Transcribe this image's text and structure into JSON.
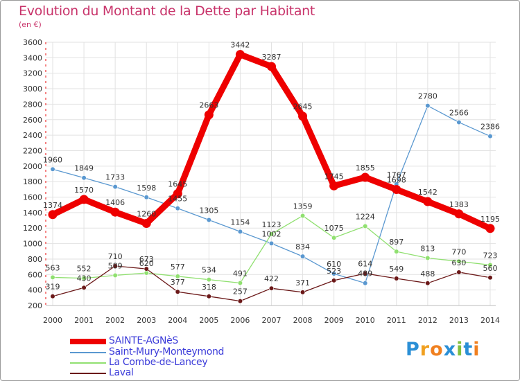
{
  "title": "Evolution du Montant de la Dette par Habitant",
  "subtitle": "(en €)",
  "logo_text": "Proxiti",
  "chart_data": {
    "type": "line",
    "title": "Evolution du Montant de la Dette par Habitant",
    "ylabel": "(en €)",
    "x": [
      2000,
      2001,
      2002,
      2003,
      2004,
      2005,
      2006,
      2007,
      2008,
      2009,
      2010,
      2011,
      2012,
      2013,
      2014
    ],
    "ylim": [
      200,
      3600
    ],
    "yticks": [
      200,
      400,
      600,
      800,
      1000,
      1200,
      1400,
      1600,
      1800,
      2000,
      2200,
      2400,
      2600,
      2800,
      3000,
      3200,
      3400,
      3600
    ],
    "grid": true,
    "legend": "bottom-left",
    "series": [
      {
        "name": "SAINTE-AGNèS",
        "color": "#ee0000",
        "values": [
          1374,
          1570,
          1406,
          1260,
          1645,
          2663,
          3442,
          3287,
          2645,
          1745,
          1855,
          1698,
          1542,
          1383,
          1195
        ],
        "labels": [
          "1374",
          "1570",
          "1406",
          "1260",
          "1645",
          "2663",
          "3442",
          "3287",
          "2645",
          "1745",
          "1855",
          "1698",
          "1542",
          "1383",
          "1195"
        ]
      },
      {
        "name": "Saint-Mury-Monteymond",
        "color": "#5a98d0",
        "values": [
          1960,
          1849,
          1733,
          1598,
          1455,
          1305,
          1154,
          1002,
          834,
          610,
          489,
          1767,
          2780,
          2566,
          2386
        ],
        "labels": [
          "1960",
          "1849",
          "1733",
          "1598",
          "1455",
          "1305",
          "1154",
          "1002",
          "834",
          "610",
          "489",
          "1767",
          "2780",
          "2566",
          "2386"
        ]
      },
      {
        "name": "La Combe-de-Lancey",
        "color": "#90e070",
        "values": [
          563,
          552,
          589,
          620,
          577,
          534,
          491,
          1123,
          1359,
          1075,
          1224,
          897,
          813,
          770,
          723
        ],
        "labels": [
          "563",
          "552",
          "589",
          "620",
          "577",
          "534",
          "491",
          "1123",
          "1359",
          "1075",
          "1224",
          "897",
          "813",
          "770",
          "723"
        ]
      },
      {
        "name": "Laval",
        "color": "#6b1818",
        "values": [
          319,
          430,
          710,
          673,
          377,
          318,
          257,
          422,
          371,
          523,
          614,
          549,
          488,
          630,
          560
        ],
        "labels": [
          "319",
          "430",
          "710",
          "673",
          "377",
          "318",
          "257",
          "422",
          "371",
          "523",
          "614",
          "549",
          "488",
          "630",
          "560"
        ]
      }
    ]
  }
}
